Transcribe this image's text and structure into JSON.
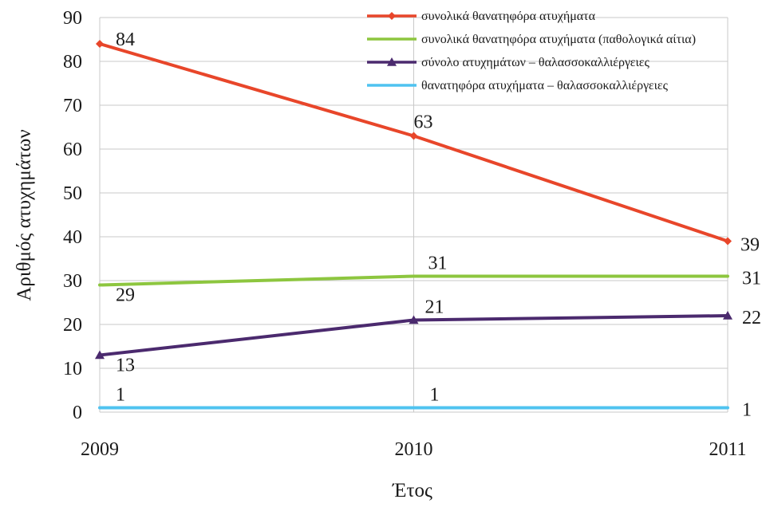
{
  "chart_data": {
    "type": "line",
    "title": "",
    "xlabel": "Έτος",
    "ylabel": "Αριθμός ατυχημάτων",
    "categories": [
      "2009",
      "2010",
      "2011"
    ],
    "ylim": [
      0,
      90
    ],
    "yticks": [
      "0",
      "10",
      "20",
      "30",
      "40",
      "50",
      "60",
      "70",
      "80",
      "90"
    ],
    "grid": true,
    "legend_position": "top-right",
    "series": [
      {
        "name": "συνολικά θανατηφόρα ατυχήματα",
        "values": [
          84,
          63,
          39
        ],
        "labels": [
          "84",
          "63",
          "39"
        ],
        "color": "#e8462a",
        "marker": "diamond"
      },
      {
        "name": "συνολικά θανατηφόρα ατυχήματα (παθολογικά αίτια)",
        "values": [
          29,
          31,
          31
        ],
        "labels": [
          "29",
          "31",
          "31"
        ],
        "color": "#8dc63f",
        "marker": "none"
      },
      {
        "name": "σύνολο ατυχημάτων – θαλασσοκαλλιέργειες",
        "values": [
          13,
          21,
          22
        ],
        "labels": [
          "13",
          "21",
          "22"
        ],
        "color": "#4b2a6e",
        "marker": "triangle"
      },
      {
        "name": "θανατηφόρα ατυχήματα – θαλασσοκαλλιέργειες",
        "values": [
          1,
          1,
          1
        ],
        "labels": [
          "1",
          "1",
          "1"
        ],
        "color": "#4fc3f0",
        "marker": "none"
      }
    ]
  }
}
